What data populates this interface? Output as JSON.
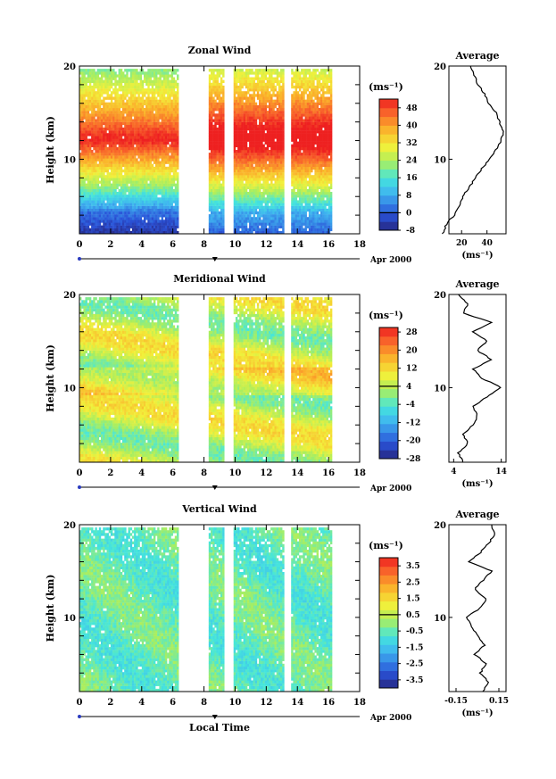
{
  "figure": {
    "date_label": "Apr 2000",
    "x_axis_title": "Local Time",
    "y_axis_title": "Height (km)",
    "colorbar_unit": "(ms⁻¹)",
    "profile_title": "Average"
  },
  "chart_data": [
    {
      "type": "heatmap",
      "title": "Zonal Wind",
      "xlabel": "",
      "ylabel": "Height (km)",
      "xlim": [
        0,
        18
      ],
      "ylim": [
        2,
        20
      ],
      "x_ticks": [
        0,
        2,
        4,
        6,
        8,
        10,
        12,
        14,
        16,
        18
      ],
      "y_ticks": [
        10,
        20
      ],
      "data_segments_hours": [
        [
          0,
          6.3
        ],
        [
          8.3,
          9.3
        ],
        [
          9.9,
          13.1
        ],
        [
          13.6,
          16.2
        ]
      ],
      "colorbar": {
        "unit": "(ms⁻¹)",
        "range": [
          -8,
          52
        ],
        "ticks": [
          -8,
          0,
          8,
          16,
          24,
          32,
          40,
          48
        ]
      },
      "height_profile_mean": [
        [
          2,
          5
        ],
        [
          3,
          8
        ],
        [
          4,
          14
        ],
        [
          5,
          18
        ],
        [
          6,
          21
        ],
        [
          7,
          26
        ],
        [
          8,
          31
        ],
        [
          9,
          36
        ],
        [
          10,
          42
        ],
        [
          11,
          47
        ],
        [
          12,
          51
        ],
        [
          13,
          53
        ],
        [
          14,
          50
        ],
        [
          15,
          47
        ],
        [
          16,
          41
        ],
        [
          17,
          38
        ],
        [
          18,
          33
        ],
        [
          19,
          30
        ],
        [
          20,
          27
        ]
      ],
      "profile": {
        "title": "Average",
        "xlabel": "(ms⁻¹)",
        "xlim": [
          10,
          55
        ],
        "x_ticks": [
          20,
          40
        ]
      }
    },
    {
      "type": "heatmap",
      "title": "Meridional Wind",
      "xlabel": "",
      "ylabel": "Height (km)",
      "xlim": [
        0,
        18
      ],
      "ylim": [
        2,
        20
      ],
      "x_ticks": [
        0,
        2,
        4,
        6,
        8,
        10,
        12,
        14,
        16,
        18
      ],
      "y_ticks": [
        10,
        20
      ],
      "data_segments_hours": [
        [
          0,
          6.3
        ],
        [
          8.3,
          9.3
        ],
        [
          9.9,
          13.1
        ],
        [
          13.6,
          16.2
        ]
      ],
      "colorbar": {
        "unit": "(ms⁻¹)",
        "range": [
          -28,
          30
        ],
        "ticks": [
          -28,
          -20,
          -12,
          -4,
          4,
          12,
          20,
          28
        ]
      },
      "height_profile_mean": [
        [
          2,
          6
        ],
        [
          3,
          5
        ],
        [
          4,
          7
        ],
        [
          5,
          6
        ],
        [
          6,
          8
        ],
        [
          7,
          9
        ],
        [
          8,
          8
        ],
        [
          9,
          11
        ],
        [
          10,
          14
        ],
        [
          11,
          10
        ],
        [
          12,
          8
        ],
        [
          13,
          12
        ],
        [
          14,
          9
        ],
        [
          15,
          11
        ],
        [
          16,
          8
        ],
        [
          17,
          12
        ],
        [
          18,
          6
        ],
        [
          19,
          7
        ],
        [
          20,
          5
        ]
      ],
      "profile": {
        "title": "Average",
        "xlabel": "(ms⁻¹)",
        "xlim": [
          3,
          15
        ],
        "x_ticks": [
          4,
          14
        ]
      }
    },
    {
      "type": "heatmap",
      "title": "Vertical Wind",
      "xlabel": "Local Time",
      "ylabel": "Height (km)",
      "xlim": [
        0,
        18
      ],
      "ylim": [
        2,
        20
      ],
      "x_ticks": [
        0,
        2,
        4,
        6,
        8,
        10,
        12,
        14,
        16,
        18
      ],
      "y_ticks": [
        10,
        20
      ],
      "data_segments_hours": [
        [
          0,
          6.3
        ],
        [
          8.3,
          9.3
        ],
        [
          9.9,
          13.1
        ],
        [
          13.6,
          16.2
        ]
      ],
      "colorbar": {
        "unit": "(ms⁻¹)",
        "range": [
          -4,
          4
        ],
        "ticks": [
          -3.5,
          -2.5,
          -1.5,
          -0.5,
          0.5,
          1.5,
          2.5,
          3.5
        ]
      },
      "height_profile_mean": [
        [
          2,
          0.04
        ],
        [
          3,
          0.08
        ],
        [
          4,
          0.02
        ],
        [
          5,
          0.06
        ],
        [
          6,
          -0.02
        ],
        [
          7,
          0.05
        ],
        [
          8,
          0.0
        ],
        [
          9,
          -0.04
        ],
        [
          10,
          -0.08
        ],
        [
          11,
          0.02
        ],
        [
          12,
          0.06
        ],
        [
          13,
          -0.02
        ],
        [
          14,
          0.04
        ],
        [
          15,
          0.1
        ],
        [
          16,
          -0.06
        ],
        [
          17,
          0.02
        ],
        [
          18,
          0.08
        ],
        [
          19,
          0.12
        ],
        [
          20,
          0.1
        ]
      ],
      "profile": {
        "title": "Average",
        "xlabel": "(ms⁻¹)",
        "xlim": [
          -0.2,
          0.2
        ],
        "x_ticks": [
          -0.15,
          0.15
        ]
      }
    }
  ]
}
